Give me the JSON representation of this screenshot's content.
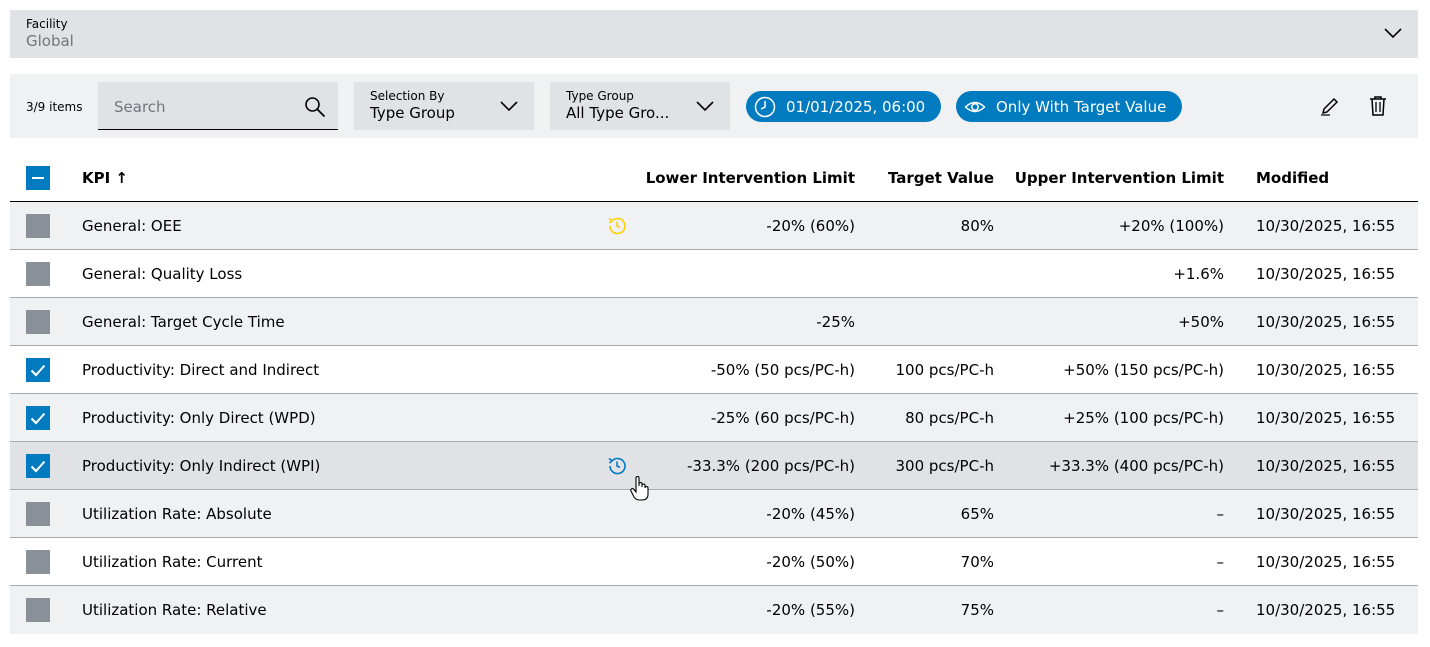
{
  "facility": {
    "label": "Facility",
    "value": "Global"
  },
  "toolbar": {
    "count": "3/9 items",
    "search_placeholder": "Search",
    "selection_by": {
      "label": "Selection By",
      "value": "Type Group"
    },
    "type_group": {
      "label": "Type Group",
      "value": "All Type Gro..."
    },
    "date_chip": "01/01/2025, 06:00",
    "target_chip": "Only With Target Value",
    "icons": [
      "edit-icon",
      "delete-icon"
    ]
  },
  "colors": {
    "accent": "#007bc0",
    "history_warning": "#ffcf00",
    "history_info": "#007bc0"
  },
  "table": {
    "headers": {
      "kpi": "KPI ↑",
      "lower": "Lower Intervention Limit",
      "target": "Target Value",
      "upper": "Upper Intervention Limit",
      "modified": "Modified"
    },
    "select_all_state": "indeterminate",
    "rows": [
      {
        "checked": false,
        "kpi": "General: OEE",
        "history": "warning",
        "lower": "-20% (60%)",
        "target": "80%",
        "upper": "+20% (100%)",
        "modified": "10/30/2025, 16:55"
      },
      {
        "checked": false,
        "kpi": "General: Quality Loss",
        "history": "",
        "lower": "",
        "target": "",
        "upper": "+1.6%",
        "modified": "10/30/2025, 16:55"
      },
      {
        "checked": false,
        "kpi": "General: Target Cycle Time",
        "history": "",
        "lower": "-25%",
        "target": "",
        "upper": "+50%",
        "modified": "10/30/2025, 16:55"
      },
      {
        "checked": true,
        "kpi": "Productivity: Direct and Indirect",
        "history": "",
        "lower": "-50% (50 pcs/PC-h)",
        "target": "100 pcs/PC-h",
        "upper": "+50% (150 pcs/PC-h)",
        "modified": "10/30/2025, 16:55"
      },
      {
        "checked": true,
        "kpi": "Productivity: Only Direct (WPD)",
        "history": "",
        "lower": "-25% (60 pcs/PC-h)",
        "target": "80 pcs/PC-h",
        "upper": "+25% (100 pcs/PC-h)",
        "modified": "10/30/2025, 16:55"
      },
      {
        "checked": true,
        "kpi": "Productivity: Only Indirect (WPI)",
        "history": "info",
        "lower": "-33.3% (200 pcs/PC-h)",
        "target": "300 pcs/PC-h",
        "upper": "+33.3% (400 pcs/PC-h)",
        "modified": "10/30/2025, 16:55"
      },
      {
        "checked": false,
        "kpi": "Utilization Rate: Absolute",
        "history": "",
        "lower": "-20% (45%)",
        "target": "65%",
        "upper": "–",
        "modified": "10/30/2025, 16:55"
      },
      {
        "checked": false,
        "kpi": "Utilization Rate: Current",
        "history": "",
        "lower": "-20% (50%)",
        "target": "70%",
        "upper": "–",
        "modified": "10/30/2025, 16:55"
      },
      {
        "checked": false,
        "kpi": "Utilization Rate: Relative",
        "history": "",
        "lower": "-20% (55%)",
        "target": "75%",
        "upper": "–",
        "modified": "10/30/2025, 16:55"
      }
    ]
  }
}
